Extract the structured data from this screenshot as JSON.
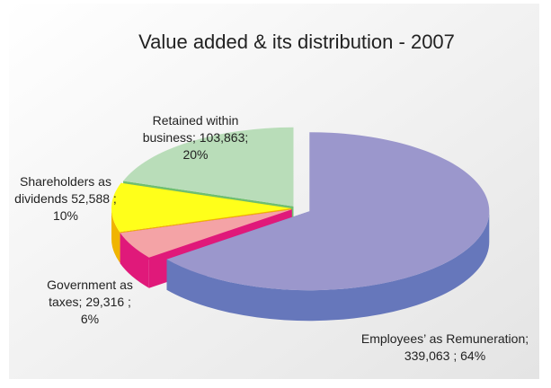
{
  "chart_data": {
    "type": "pie3d",
    "title": "Value added & its distribution - 2007",
    "labels": [
      "Employees’ as Remuneration; 339,063 ; 64%",
      "Government as taxes; 29,316 ; 6%",
      "Shareholders as dividends 52,588 ; 10%",
      "Retained within business; 103,863; 20%"
    ],
    "values": [
      339063,
      29316,
      52588,
      103863
    ],
    "percents": [
      64,
      6,
      10,
      20
    ],
    "colors": [
      "#9b97cc",
      "#f4a3a6",
      "#ffff1a",
      "#b9ddb9"
    ],
    "side_colors": [
      "#6677bb",
      "#e0197a",
      "#f0b400",
      "#6fbf6f"
    ]
  }
}
